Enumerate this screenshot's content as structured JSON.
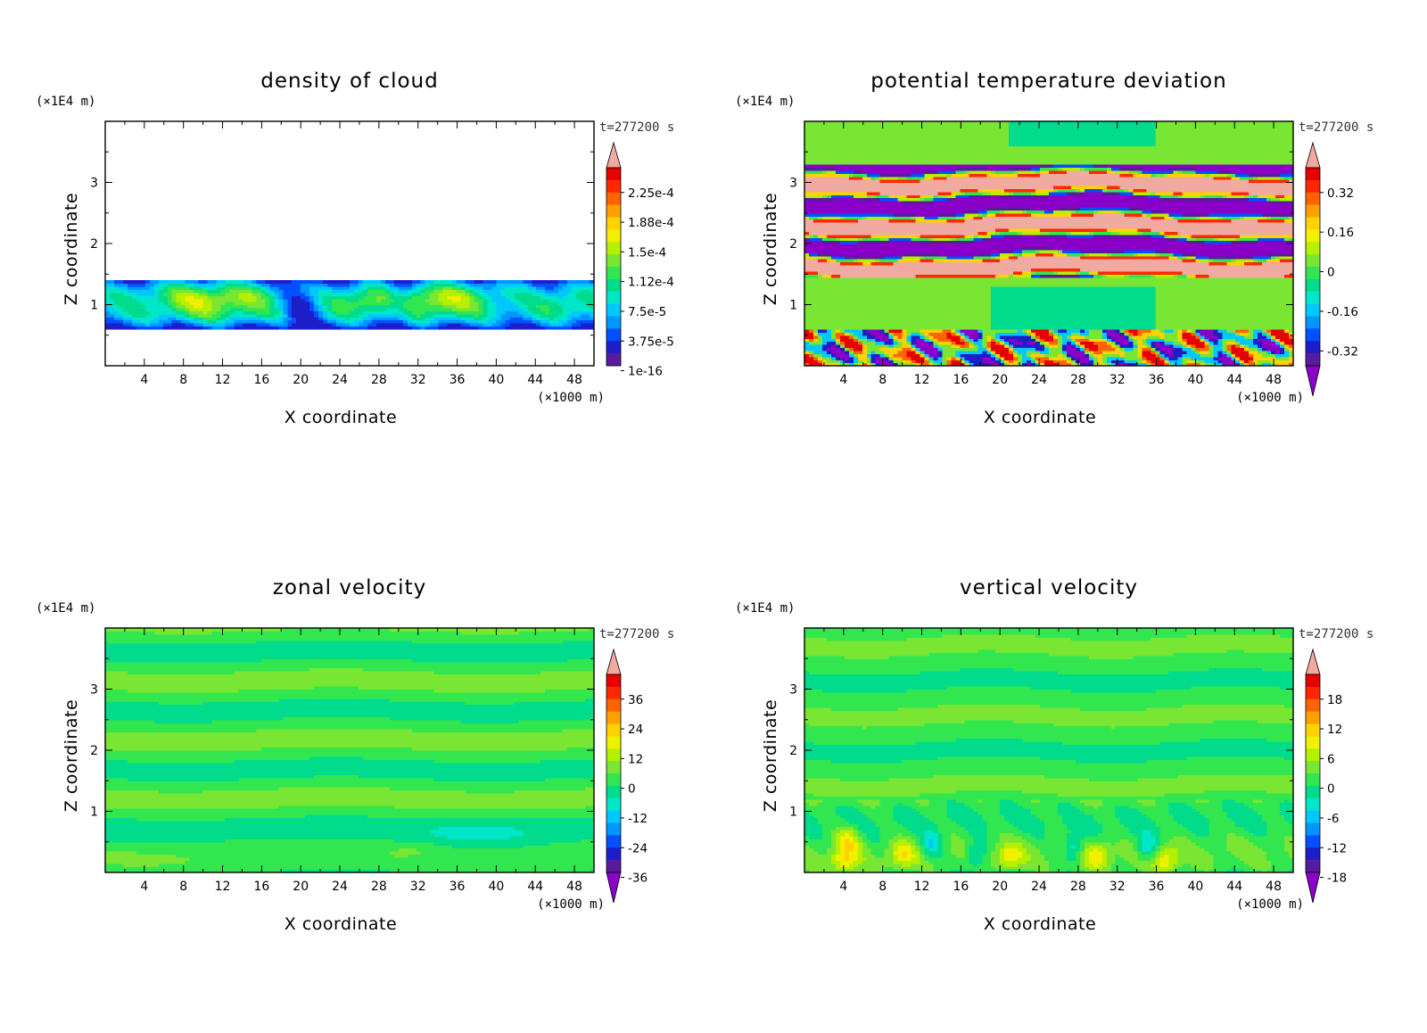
{
  "chart_data": [
    {
      "type": "heatmap",
      "title": "density of cloud",
      "xlabel": "X coordinate",
      "ylabel": "Z coordinate",
      "x_unit": "(×1000 m)",
      "y_unit": "(×1E4 m)",
      "time_label": "t=277200 s",
      "xlim": [
        0,
        50
      ],
      "ylim": [
        0,
        4
      ],
      "x_ticks": [
        "4",
        "8",
        "12",
        "16",
        "20",
        "24",
        "28",
        "32",
        "36",
        "40",
        "44",
        "48"
      ],
      "y_ticks": [
        "1",
        "2",
        "3"
      ],
      "colorbar_labels": [
        "2.25e-4",
        "1.88e-4",
        "1.5e-4",
        "1.12e-4",
        "7.5e-5",
        "3.75e-5",
        "1e-16"
      ],
      "field": "cloud"
    },
    {
      "type": "heatmap",
      "title": "potential temperature deviation",
      "xlabel": "X coordinate",
      "ylabel": "Z coordinate",
      "x_unit": "(×1000 m)",
      "y_unit": "(×1E4 m)",
      "time_label": "t=277200 s",
      "xlim": [
        0,
        50
      ],
      "ylim": [
        0,
        4
      ],
      "x_ticks": [
        "4",
        "8",
        "12",
        "16",
        "20",
        "24",
        "28",
        "32",
        "36",
        "40",
        "44",
        "48"
      ],
      "y_ticks": [
        "1",
        "2",
        "3"
      ],
      "colorbar_labels": [
        "0.32",
        "0.16",
        "0",
        "-0.16",
        "-0.32"
      ],
      "field": "theta"
    },
    {
      "type": "heatmap",
      "title": "zonal velocity",
      "xlabel": "X coordinate",
      "ylabel": "Z coordinate",
      "x_unit": "(×1000 m)",
      "y_unit": "(×1E4 m)",
      "time_label": "t=277200 s",
      "xlim": [
        0,
        50
      ],
      "ylim": [
        0,
        4
      ],
      "x_ticks": [
        "4",
        "8",
        "12",
        "16",
        "20",
        "24",
        "28",
        "32",
        "36",
        "40",
        "44",
        "48"
      ],
      "y_ticks": [
        "1",
        "2",
        "3"
      ],
      "colorbar_labels": [
        "36",
        "24",
        "12",
        "0",
        "-12",
        "-24",
        "-36"
      ],
      "field": "u"
    },
    {
      "type": "heatmap",
      "title": "vertical velocity",
      "xlabel": "X coordinate",
      "ylabel": "Z coordinate",
      "x_unit": "(×1000 m)",
      "y_unit": "(×1E4 m)",
      "time_label": "t=277200 s",
      "xlim": [
        0,
        50
      ],
      "ylim": [
        0,
        4
      ],
      "x_ticks": [
        "4",
        "8",
        "12",
        "16",
        "20",
        "24",
        "28",
        "32",
        "36",
        "40",
        "44",
        "48"
      ],
      "y_ticks": [
        "1",
        "2",
        "3"
      ],
      "colorbar_labels": [
        "18",
        "12",
        "6",
        "0",
        "-6",
        "-12",
        "-18"
      ],
      "field": "w"
    }
  ],
  "palette": [
    "#8b00c8",
    "#5a1aa0",
    "#1e1ec8",
    "#0050ff",
    "#0096ff",
    "#00c8ff",
    "#00e6c8",
    "#00dc8c",
    "#32e650",
    "#78e632",
    "#b4f000",
    "#f0f000",
    "#ffd200",
    "#ffa000",
    "#ff6400",
    "#ff2800",
    "#e60000",
    "#f0aaa0"
  ]
}
